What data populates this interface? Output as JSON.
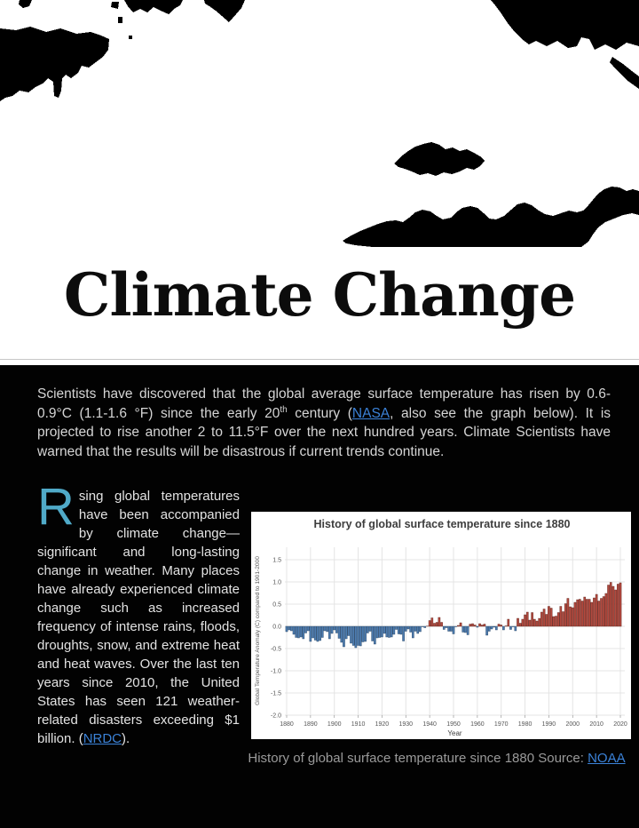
{
  "page": {
    "title": "Climate Change"
  },
  "intro": {
    "text_before_sup": "Scientists have discovered that the global average surface temperature has risen by 0.6-0.9°C (1.1-1.6 °F) since the early 20",
    "sup": "th",
    "text_after_sup": " century (",
    "link": "NASA",
    "text_after_link": ", also see the graph below). It is projected to rise another 2 to 11.5°F over the next hundred years.  Climate Scientists have warned that the results will be disastrous if current trends continue."
  },
  "article": {
    "dropcap": "R",
    "text": "sing global temperatures have been accompanied by climate change—significant and long-lasting change in weather.  Many places have already experienced climate change such as increased frequency of intense rains, floods, droughts, snow, and extreme heat and heat waves. Over the last ten years since 2010, the United States has seen 121 weather-related disasters exceeding $1 billion. (",
    "link": "NRDC",
    "text_after_link": ")."
  },
  "figure": {
    "caption_text": "History of global surface temperature since 1880 Source: ",
    "caption_link": "NOAA"
  },
  "colors": {
    "dropcap_blue": "#50aac8",
    "link_blue": "#3b82d8",
    "band_background": "#020202",
    "grid": "#e4e4e4",
    "tick_text": "#555555",
    "chart_title_text": "#3d3d3d"
  },
  "chart_data": {
    "type": "bar",
    "title": "History of global surface temperature since 1880",
    "xlabel": "Year",
    "ylabel": "Global Temperature Anomaly (C) compared to 1901-2000",
    "x_start": 1880,
    "x_end": 2020,
    "x_ticks": [
      1880,
      1890,
      1900,
      1910,
      1920,
      1930,
      1940,
      1950,
      1960,
      1970,
      1980,
      1990,
      2000,
      2010,
      2020
    ],
    "y_ticks": [
      "1.5",
      "1.0",
      "0.5",
      "0.0",
      "-0.5",
      "-1.0",
      "-1.5",
      "-2.0"
    ],
    "ylim": [
      -2.0,
      1.75
    ],
    "grid": true,
    "legend": "none",
    "bar_color_positive": "#b2493e",
    "bar_color_negative": "#4d7cb0",
    "bar_stroke_positive": "#5a1f18",
    "bar_stroke_negative": "#1e3c5c",
    "values": [
      -0.12,
      -0.08,
      -0.1,
      -0.18,
      -0.25,
      -0.26,
      -0.24,
      -0.28,
      -0.15,
      -0.1,
      -0.34,
      -0.26,
      -0.31,
      -0.34,
      -0.32,
      -0.25,
      -0.1,
      -0.12,
      -0.28,
      -0.16,
      -0.08,
      -0.15,
      -0.27,
      -0.36,
      -0.46,
      -0.28,
      -0.21,
      -0.38,
      -0.43,
      -0.48,
      -0.43,
      -0.44,
      -0.35,
      -0.34,
      -0.15,
      -0.11,
      -0.33,
      -0.4,
      -0.26,
      -0.25,
      -0.24,
      -0.16,
      -0.24,
      -0.25,
      -0.24,
      -0.18,
      -0.07,
      -0.17,
      -0.18,
      -0.33,
      -0.11,
      -0.06,
      -0.13,
      -0.26,
      -0.11,
      -0.16,
      -0.12,
      -0.01,
      -0.03,
      0.0,
      0.13,
      0.19,
      0.07,
      0.09,
      0.2,
      0.09,
      -0.07,
      -0.03,
      -0.11,
      -0.11,
      -0.17,
      -0.01,
      0.02,
      0.08,
      -0.13,
      -0.14,
      -0.19,
      0.05,
      0.06,
      0.03,
      -0.02,
      0.06,
      0.03,
      0.05,
      -0.2,
      -0.11,
      -0.06,
      -0.02,
      -0.08,
      0.05,
      0.03,
      -0.08,
      0.01,
      0.16,
      -0.07,
      -0.01,
      -0.1,
      0.18,
      0.07,
      0.16,
      0.26,
      0.32,
      0.14,
      0.31,
      0.16,
      0.12,
      0.18,
      0.32,
      0.39,
      0.27,
      0.45,
      0.41,
      0.22,
      0.23,
      0.31,
      0.45,
      0.33,
      0.51,
      0.63,
      0.44,
      0.42,
      0.54,
      0.6,
      0.61,
      0.57,
      0.66,
      0.61,
      0.61,
      0.54,
      0.64,
      0.72,
      0.57,
      0.63,
      0.67,
      0.74,
      0.93,
      0.99,
      0.9,
      0.82,
      0.95,
      0.98
    ]
  }
}
